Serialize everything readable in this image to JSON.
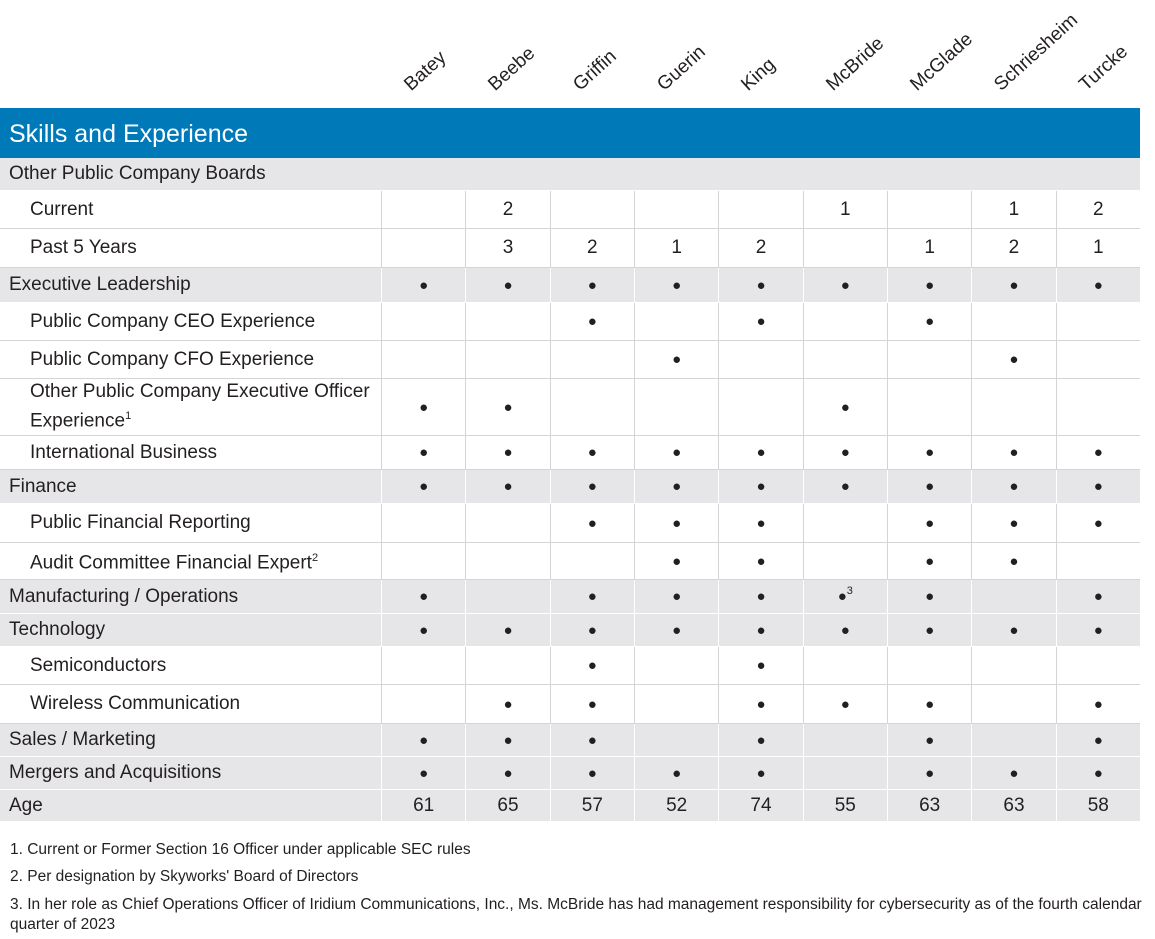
{
  "directors": [
    "Batey",
    "Beebe",
    "Griffin",
    "Guerin",
    "King",
    "McBride",
    "McGlade",
    "Schriesheim",
    "Turcke"
  ],
  "table": {
    "title": "Skills and Experience",
    "rows": [
      {
        "label": "Other Public Company Boards",
        "shaded": true
      },
      {
        "label": "Current",
        "cells": [
          null,
          "2",
          null,
          null,
          null,
          "1",
          null,
          "1",
          "2"
        ]
      },
      {
        "label": "Past 5 Years",
        "cells": [
          null,
          "3",
          "2",
          "1",
          "2",
          null,
          "1",
          "2",
          "1"
        ]
      },
      {
        "label": "Executive Leadership",
        "shaded": true,
        "cells": [
          "●",
          "●",
          "●",
          "●",
          "●",
          "●",
          "●",
          "●",
          "●"
        ]
      },
      {
        "label": "Public Company CEO Experience",
        "cells": [
          null,
          null,
          "●",
          null,
          "●",
          null,
          "●",
          null,
          null
        ]
      },
      {
        "label": "Public Company CFO Experience",
        "cells": [
          null,
          null,
          null,
          "●",
          null,
          null,
          null,
          "●",
          null
        ]
      },
      {
        "label": "Other Public Company Executive Officer Experience",
        "note": "1",
        "cells": [
          "●",
          "●",
          null,
          null,
          null,
          "●",
          null,
          null,
          null
        ]
      },
      {
        "label": "International Business",
        "cells": [
          "●",
          "●",
          "●",
          "●",
          "●",
          "●",
          "●",
          "●",
          "●"
        ]
      },
      {
        "label": "Finance",
        "shaded": true,
        "cells": [
          "●",
          "●",
          "●",
          "●",
          "●",
          "●",
          "●",
          "●",
          "●"
        ]
      },
      {
        "label": "Public Financial Reporting",
        "cells": [
          null,
          null,
          "●",
          "●",
          "●",
          null,
          "●",
          "●",
          "●"
        ]
      },
      {
        "label": "Audit Committee Financial Expert",
        "note": "2",
        "cells": [
          null,
          null,
          null,
          "●",
          "●",
          null,
          "●",
          "●",
          null
        ]
      },
      {
        "label": "Manufacturing / Operations",
        "shaded": true,
        "cells": [
          "●",
          null,
          "●",
          "●",
          "●",
          {
            "text": "●",
            "note": "3"
          },
          "●",
          null,
          "●"
        ]
      },
      {
        "label": "Technology",
        "shaded": true,
        "cells": [
          "●",
          "●",
          "●",
          "●",
          "●",
          "●",
          "●",
          "●",
          "●"
        ]
      },
      {
        "label": "Semiconductors",
        "cells": [
          null,
          null,
          "●",
          null,
          "●",
          null,
          null,
          null,
          null
        ]
      },
      {
        "label": "Wireless Communication",
        "cells": [
          null,
          "●",
          "●",
          null,
          "●",
          "●",
          "●",
          null,
          "●"
        ]
      },
      {
        "label": "Sales / Marketing",
        "shaded": true,
        "cells": [
          "●",
          "●",
          "●",
          null,
          "●",
          null,
          "●",
          null,
          "●"
        ]
      },
      {
        "label": "Mergers and Acquisitions",
        "shaded": true,
        "cells": [
          "●",
          "●",
          "●",
          "●",
          "●",
          null,
          "●",
          "●",
          "●"
        ]
      },
      {
        "label": "Age",
        "shaded": true,
        "cells": [
          "61",
          "65",
          "57",
          "52",
          "74",
          "55",
          "63",
          "63",
          "58"
        ]
      }
    ]
  },
  "footnotes": [
    "1. Current or Former Section 16 Officer under applicable SEC rules",
    "2. Per designation by Skyworks' Board of Directors",
    "3. In her role as Chief Operations Officer of Iridium Communications, Inc., Ms. McBride has had management responsibility for cybersecurity as of the fourth calendar quarter of 2023"
  ]
}
